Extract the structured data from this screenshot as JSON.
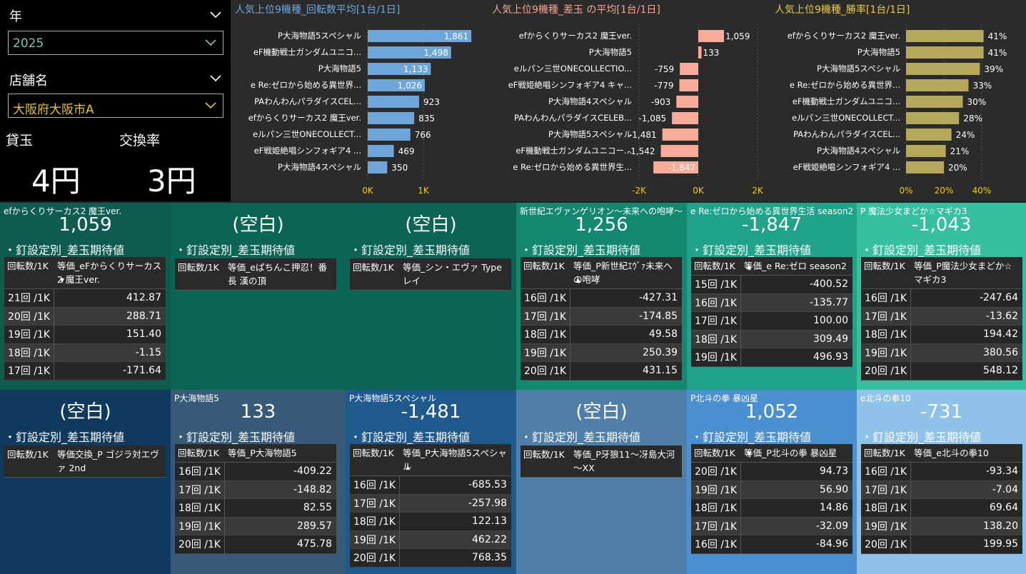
{
  "filters": {
    "year_label": "年",
    "year_value": "2025",
    "store_label": "店舗名",
    "store_value": "大阪府大阪市A"
  },
  "kpis": {
    "kashidama_label": "貸玉",
    "kashidama_value": "4円",
    "rate_label": "交換率",
    "rate_value": "3円"
  },
  "chart_data": [
    {
      "type": "bar",
      "title": "人気上位9機種_回転数平均[1台/1日]",
      "categories": [
        "P大海物語5スペシャル",
        "eF機動戦士ガンダムユニコ...",
        "P大海物語5",
        "e Re:ゼロから始める異世界...",
        "PAわんわんパラダイスCEL...",
        "efからくりサーカス2 魔王ver.",
        "eルパン三世ONECOLLECT...",
        "eF戦姫絶唱シンフォギア4 ...",
        "P大海物語4スペシャル"
      ],
      "values": [
        1861,
        1498,
        1133,
        1026,
        923,
        835,
        766,
        469,
        350
      ],
      "labels": [
        "1,861",
        "1,498",
        "1,133",
        "1,026",
        "923",
        "835",
        "766",
        "469",
        "350"
      ],
      "xticks": [
        "0K",
        "1K"
      ],
      "xlim": [
        0,
        2000
      ],
      "color": "#6fa6da",
      "title_color": "#6fa6da"
    },
    {
      "type": "bar",
      "title": "人気上位9機種_差玉 の平均[1台/1日]",
      "categories": [
        "efからくりサーカス2 魔王ver.",
        "P大海物語5",
        "eルパン三世ONECOLLECTIO...",
        "eF戦姫絶唱シンフォギア4 キャ...",
        "P大海物語4スペシャル",
        "PAわんわんパラダイスCELEB...",
        "P大海物語5スペシャル",
        "eF機動戦士ガンダムユニコー...",
        "e Re:ゼロから始める異世界生..."
      ],
      "values": [
        1059,
        133,
        -759,
        -779,
        -903,
        -1085,
        -1481,
        -1542,
        -1847
      ],
      "labels": [
        "1,059",
        "133",
        "-759",
        "-779",
        "-903",
        "-1,085",
        "-1,481",
        "-1,542",
        "-1,847"
      ],
      "xticks": [
        "-2K",
        "0K",
        "2K"
      ],
      "xlim": [
        -2000,
        2000
      ],
      "color": "#f7ab98",
      "title_color": "#f4a58e"
    },
    {
      "type": "bar",
      "title": "人気上位9機種_勝率[1台/1日]",
      "categories": [
        "efからくりサーカス2 魔王ver.",
        "P大海物語5",
        "P大海物語5スペシャル",
        "e Re:ゼロから始める異世界...",
        "eF機動戦士ガンダムユニコ...",
        "eルパン三世ONECOLLECT...",
        "PAわんわんパラダイスCEL...",
        "P大海物語4スペシャル",
        "eF戦姫絶唱シンフォギア4 ..."
      ],
      "values": [
        41,
        41,
        39,
        33,
        30,
        28,
        24,
        21,
        20
      ],
      "labels": [
        "41%",
        "41%",
        "39%",
        "33%",
        "30%",
        "28%",
        "24%",
        "21%",
        "20%"
      ],
      "xticks": [
        "0%",
        "20%",
        "40%"
      ],
      "xlim": [
        0,
        45
      ],
      "color": "#b6a85a",
      "title_color": "#e8c84a"
    }
  ],
  "tiles": [
    {
      "name": "efからくりサーカス2 魔王ver.",
      "value": "1,059",
      "sub": "・釘設定別_差玉期待値",
      "h1": "回転数/1K",
      "h2": "等価_eFからくりサーカス2 魔王ver.",
      "sort": "down",
      "rows": [
        [
          "21回 /1K",
          "412.87"
        ],
        [
          "20回 /1K",
          "288.71"
        ],
        [
          "19回 /1K",
          "151.40"
        ],
        [
          "18回 /1K",
          "-1.15"
        ],
        [
          "17回 /1K",
          "-171.64"
        ]
      ],
      "bg": "#0e5c50"
    },
    {
      "name": "",
      "value": "(空白)",
      "sub": "・釘設定別_差玉期待値",
      "h1": "回転数/1K",
      "h2": "等価_eぱちんこ押忍！番長 漢の頂",
      "sort": "",
      "rows": [],
      "bg": "#0b6455"
    },
    {
      "name": "",
      "value": "(空白)",
      "sub": "・釘設定別_差玉期待値",
      "h1": "回転数/1K",
      "h2": "等価_シン・エヴァ Type レイ",
      "sort": "",
      "rows": [],
      "bg": "#0b6455"
    },
    {
      "name": "新世紀エヴァンゲリオン～未来への咆哮～",
      "value": "1,256",
      "sub": "・釘設定別_差玉期待値",
      "h1": "回転数/1K",
      "h2": "等価_P新世紀ｴｳﾞｧ未来への咆哮",
      "sort": "up",
      "rows": [
        [
          "16回 /1K",
          "-427.31"
        ],
        [
          "17回 /1K",
          "-174.85"
        ],
        [
          "18回 /1K",
          "49.58"
        ],
        [
          "19回 /1K",
          "250.39"
        ],
        [
          "20回 /1K",
          "431.15"
        ]
      ],
      "bg": "#13876f"
    },
    {
      "name": "e Re:ゼロから始める異世界生活 season2",
      "value": "-1,847",
      "sub": "・釘設定別_差玉期待値",
      "h1": "回転数/1K",
      "h2": "等価_e Re:ゼロ season2",
      "sort": "up",
      "rows": [
        [
          "15回 /1K",
          "-400.52"
        ],
        [
          "16回 /1K",
          "-135.77"
        ],
        [
          "17回 /1K",
          "100.00"
        ],
        [
          "18回 /1K",
          "309.49"
        ],
        [
          "19回 /1K",
          "496.93"
        ]
      ],
      "bg": "#20a38a"
    },
    {
      "name": "P 魔法少女まどか☆マギカ3",
      "value": "-1,043",
      "sub": "・釘設定別_差玉期待値",
      "h1": "回転数/1K",
      "h2": "等価_P魔法少女まどか☆マギカ3",
      "sort": "",
      "rows": [
        [
          "16回 /1K",
          "-247.64"
        ],
        [
          "17回 /1K",
          "-13.62"
        ],
        [
          "18回 /1K",
          "194.42"
        ],
        [
          "19回 /1K",
          "380.56"
        ],
        [
          "20回 /1K",
          "548.12"
        ]
      ],
      "bg": "#37bfa2"
    },
    {
      "name": "",
      "value": "(空白)",
      "sub": "・釘設定別_差玉期待値",
      "h1": "回転数/1K",
      "h2": "等価交換_P ゴジラ対エヴァ 2nd",
      "sort": "",
      "rows": [],
      "bg": "#0f3a5e"
    },
    {
      "name": "P大海物語5",
      "value": "133",
      "sub": "・釘設定別_差玉期待値",
      "h1": "回転数/1K",
      "h2": "等価_P大海物語5",
      "sort": "",
      "rows": [
        [
          "16回 /1K",
          "-409.22"
        ],
        [
          "17回 /1K",
          "-148.82"
        ],
        [
          "18回 /1K",
          "82.55"
        ],
        [
          "19回 /1K",
          "289.57"
        ],
        [
          "20回 /1K",
          "475.78"
        ]
      ],
      "bg": "#365a78"
    },
    {
      "name": "P大海物語5スペシャル",
      "value": "-1,481",
      "sub": "・釘設定別_差玉期待値",
      "h1": "回転数/1K",
      "h2": "等価_P大海物語5スペシャル",
      "sort": "up",
      "rows": [
        [
          "16回 /1K",
          "-685.53"
        ],
        [
          "17回 /1K",
          "-257.98"
        ],
        [
          "18回 /1K",
          "122.13"
        ],
        [
          "19回 /1K",
          "462.22"
        ],
        [
          "20回 /1K",
          "768.35"
        ]
      ],
      "bg": "#1f5a8e"
    },
    {
      "name": "",
      "value": "(空白)",
      "sub": "・釘設定別_差玉期待値",
      "h1": "回転数/1K",
      "h2": "等価_P牙狼11～冴島大河～XX",
      "sort": "",
      "rows": [],
      "bg": "#4f7fa8"
    },
    {
      "name": "P北斗の拳 暴凶星",
      "value": "1,052",
      "sub": "・釘設定別_差玉期待値",
      "h1": "回転数/1K",
      "h2": "等価_P北斗の拳 暴凶星",
      "sort": "down",
      "rows": [
        [
          "20回 /1K",
          "94.73"
        ],
        [
          "19回 /1K",
          "56.90"
        ],
        [
          "18回 /1K",
          "14.86"
        ],
        [
          "17回 /1K",
          "-32.09"
        ],
        [
          "16回 /1K",
          "-84.96"
        ]
      ],
      "bg": "#4a8fd0"
    },
    {
      "name": "e北斗の拳10",
      "value": "-731",
      "sub": "・釘設定別_差玉期待値",
      "h1": "回転数/1K",
      "h2": "等価_e北斗の拳10",
      "sort": "",
      "rows": [
        [
          "16回 /1K",
          "-93.34"
        ],
        [
          "17回 /1K",
          "-7.04"
        ],
        [
          "18回 /1K",
          "69.64"
        ],
        [
          "19回 /1K",
          "138.20"
        ],
        [
          "20回 /1K",
          "199.95"
        ]
      ],
      "bg": "#8ec2e8"
    }
  ]
}
